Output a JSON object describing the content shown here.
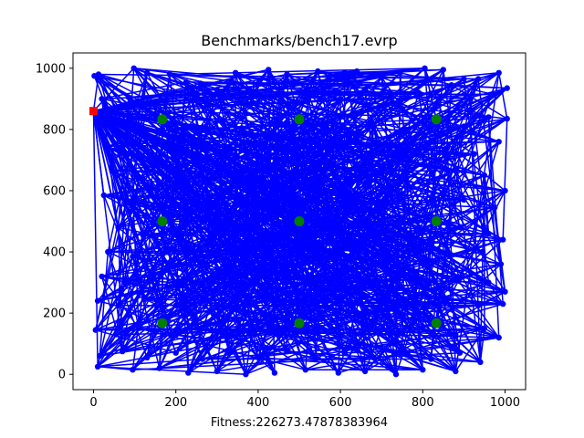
{
  "chart_data": {
    "type": "scatter",
    "title": "Benchmarks/bench17.evrp",
    "xlabel": "Fitness:226273.47878383964",
    "ylabel": "",
    "xlim": [
      -50,
      1050
    ],
    "ylim": [
      -50,
      1050
    ],
    "x_ticks": [
      0,
      200,
      400,
      600,
      800,
      1000
    ],
    "y_ticks": [
      0,
      200,
      400,
      600,
      800,
      1000
    ],
    "x_tick_labels": [
      "0",
      "200",
      "400",
      "600",
      "800",
      "1000"
    ],
    "y_tick_labels": [
      "0",
      "200",
      "400",
      "600",
      "800",
      "1000"
    ],
    "grid": false,
    "legend": "none",
    "colors": {
      "route": "#0000ff",
      "customer": "#0000ff",
      "station": "#008000",
      "depot": "#ff0000"
    },
    "depot": {
      "x": 0,
      "y": 860
    },
    "stations": [
      {
        "x": 167,
        "y": 833
      },
      {
        "x": 500,
        "y": 833
      },
      {
        "x": 833,
        "y": 833
      },
      {
        "x": 167,
        "y": 500
      },
      {
        "x": 500,
        "y": 500
      },
      {
        "x": 833,
        "y": 500
      },
      {
        "x": 167,
        "y": 167
      },
      {
        "x": 500,
        "y": 167
      },
      {
        "x": 833,
        "y": 167
      }
    ],
    "customers": [
      {
        "x": 2,
        "y": 975
      },
      {
        "x": 12,
        "y": 980
      },
      {
        "x": 98,
        "y": 1000
      },
      {
        "x": 130,
        "y": 985
      },
      {
        "x": 185,
        "y": 980
      },
      {
        "x": 225,
        "y": 955
      },
      {
        "x": 260,
        "y": 950
      },
      {
        "x": 335,
        "y": 960
      },
      {
        "x": 345,
        "y": 985
      },
      {
        "x": 425,
        "y": 995
      },
      {
        "x": 470,
        "y": 980
      },
      {
        "x": 545,
        "y": 990
      },
      {
        "x": 575,
        "y": 975
      },
      {
        "x": 610,
        "y": 985
      },
      {
        "x": 640,
        "y": 990
      },
      {
        "x": 700,
        "y": 970
      },
      {
        "x": 745,
        "y": 985
      },
      {
        "x": 805,
        "y": 1000
      },
      {
        "x": 850,
        "y": 995
      },
      {
        "x": 900,
        "y": 965
      },
      {
        "x": 935,
        "y": 965
      },
      {
        "x": 985,
        "y": 985
      },
      {
        "x": 20,
        "y": 900
      },
      {
        "x": 85,
        "y": 905
      },
      {
        "x": 140,
        "y": 890
      },
      {
        "x": 240,
        "y": 915
      },
      {
        "x": 300,
        "y": 930
      },
      {
        "x": 380,
        "y": 920
      },
      {
        "x": 455,
        "y": 910
      },
      {
        "x": 520,
        "y": 925
      },
      {
        "x": 600,
        "y": 900
      },
      {
        "x": 660,
        "y": 930
      },
      {
        "x": 720,
        "y": 905
      },
      {
        "x": 790,
        "y": 920
      },
      {
        "x": 870,
        "y": 945
      },
      {
        "x": 915,
        "y": 900
      },
      {
        "x": 970,
        "y": 915
      },
      {
        "x": 1005,
        "y": 935
      },
      {
        "x": 50,
        "y": 820
      },
      {
        "x": 120,
        "y": 795
      },
      {
        "x": 220,
        "y": 810
      },
      {
        "x": 280,
        "y": 790
      },
      {
        "x": 360,
        "y": 805
      },
      {
        "x": 430,
        "y": 780
      },
      {
        "x": 560,
        "y": 810
      },
      {
        "x": 620,
        "y": 790
      },
      {
        "x": 680,
        "y": 815
      },
      {
        "x": 760,
        "y": 800
      },
      {
        "x": 900,
        "y": 810
      },
      {
        "x": 960,
        "y": 840
      },
      {
        "x": 1005,
        "y": 835
      },
      {
        "x": 30,
        "y": 745
      },
      {
        "x": 95,
        "y": 720
      },
      {
        "x": 180,
        "y": 740
      },
      {
        "x": 250,
        "y": 705
      },
      {
        "x": 320,
        "y": 730
      },
      {
        "x": 395,
        "y": 715
      },
      {
        "x": 470,
        "y": 745
      },
      {
        "x": 540,
        "y": 720
      },
      {
        "x": 600,
        "y": 745
      },
      {
        "x": 690,
        "y": 725
      },
      {
        "x": 770,
        "y": 705
      },
      {
        "x": 860,
        "y": 740
      },
      {
        "x": 925,
        "y": 720
      },
      {
        "x": 985,
        "y": 760
      },
      {
        "x": 45,
        "y": 665
      },
      {
        "x": 110,
        "y": 640
      },
      {
        "x": 205,
        "y": 660
      },
      {
        "x": 270,
        "y": 635
      },
      {
        "x": 350,
        "y": 650
      },
      {
        "x": 420,
        "y": 670
      },
      {
        "x": 480,
        "y": 640
      },
      {
        "x": 560,
        "y": 660
      },
      {
        "x": 640,
        "y": 635
      },
      {
        "x": 700,
        "y": 660
      },
      {
        "x": 760,
        "y": 640
      },
      {
        "x": 880,
        "y": 665
      },
      {
        "x": 950,
        "y": 650
      },
      {
        "x": 1000,
        "y": 600
      },
      {
        "x": 25,
        "y": 585
      },
      {
        "x": 85,
        "y": 560
      },
      {
        "x": 150,
        "y": 580
      },
      {
        "x": 230,
        "y": 565
      },
      {
        "x": 300,
        "y": 590
      },
      {
        "x": 370,
        "y": 560
      },
      {
        "x": 440,
        "y": 585
      },
      {
        "x": 530,
        "y": 565
      },
      {
        "x": 610,
        "y": 580
      },
      {
        "x": 680,
        "y": 560
      },
      {
        "x": 750,
        "y": 590
      },
      {
        "x": 900,
        "y": 570
      },
      {
        "x": 975,
        "y": 545
      },
      {
        "x": 60,
        "y": 480
      },
      {
        "x": 120,
        "y": 455
      },
      {
        "x": 210,
        "y": 470
      },
      {
        "x": 290,
        "y": 450
      },
      {
        "x": 360,
        "y": 480
      },
      {
        "x": 430,
        "y": 460
      },
      {
        "x": 560,
        "y": 475
      },
      {
        "x": 620,
        "y": 450
      },
      {
        "x": 700,
        "y": 470
      },
      {
        "x": 770,
        "y": 455
      },
      {
        "x": 890,
        "y": 480
      },
      {
        "x": 960,
        "y": 460
      },
      {
        "x": 995,
        "y": 440
      },
      {
        "x": 35,
        "y": 400
      },
      {
        "x": 95,
        "y": 385
      },
      {
        "x": 180,
        "y": 405
      },
      {
        "x": 250,
        "y": 380
      },
      {
        "x": 330,
        "y": 400
      },
      {
        "x": 410,
        "y": 385
      },
      {
        "x": 490,
        "y": 405
      },
      {
        "x": 570,
        "y": 380
      },
      {
        "x": 640,
        "y": 400
      },
      {
        "x": 720,
        "y": 385
      },
      {
        "x": 790,
        "y": 405
      },
      {
        "x": 870,
        "y": 390
      },
      {
        "x": 945,
        "y": 400
      },
      {
        "x": 990,
        "y": 360
      },
      {
        "x": 20,
        "y": 320
      },
      {
        "x": 75,
        "y": 300
      },
      {
        "x": 140,
        "y": 315
      },
      {
        "x": 215,
        "y": 295
      },
      {
        "x": 290,
        "y": 320
      },
      {
        "x": 365,
        "y": 300
      },
      {
        "x": 445,
        "y": 320
      },
      {
        "x": 520,
        "y": 295
      },
      {
        "x": 595,
        "y": 315
      },
      {
        "x": 665,
        "y": 300
      },
      {
        "x": 740,
        "y": 320
      },
      {
        "x": 815,
        "y": 295
      },
      {
        "x": 890,
        "y": 315
      },
      {
        "x": 960,
        "y": 300
      },
      {
        "x": 1000,
        "y": 270
      },
      {
        "x": 10,
        "y": 240
      },
      {
        "x": 60,
        "y": 225
      },
      {
        "x": 125,
        "y": 245
      },
      {
        "x": 200,
        "y": 225
      },
      {
        "x": 270,
        "y": 240
      },
      {
        "x": 345,
        "y": 220
      },
      {
        "x": 420,
        "y": 240
      },
      {
        "x": 480,
        "y": 225
      },
      {
        "x": 560,
        "y": 245
      },
      {
        "x": 630,
        "y": 220
      },
      {
        "x": 700,
        "y": 240
      },
      {
        "x": 780,
        "y": 225
      },
      {
        "x": 860,
        "y": 245
      },
      {
        "x": 935,
        "y": 225
      },
      {
        "x": 995,
        "y": 230
      },
      {
        "x": 5,
        "y": 145
      },
      {
        "x": 55,
        "y": 130
      },
      {
        "x": 110,
        "y": 150
      },
      {
        "x": 190,
        "y": 130
      },
      {
        "x": 255,
        "y": 150
      },
      {
        "x": 320,
        "y": 125
      },
      {
        "x": 390,
        "y": 145
      },
      {
        "x": 450,
        "y": 130
      },
      {
        "x": 540,
        "y": 150
      },
      {
        "x": 600,
        "y": 125
      },
      {
        "x": 670,
        "y": 145
      },
      {
        "x": 740,
        "y": 130
      },
      {
        "x": 800,
        "y": 150
      },
      {
        "x": 880,
        "y": 130
      },
      {
        "x": 950,
        "y": 150
      },
      {
        "x": 985,
        "y": 120
      },
      {
        "x": 15,
        "y": 60
      },
      {
        "x": 70,
        "y": 75
      },
      {
        "x": 130,
        "y": 55
      },
      {
        "x": 200,
        "y": 70
      },
      {
        "x": 265,
        "y": 50
      },
      {
        "x": 330,
        "y": 70
      },
      {
        "x": 400,
        "y": 55
      },
      {
        "x": 470,
        "y": 75
      },
      {
        "x": 540,
        "y": 50
      },
      {
        "x": 610,
        "y": 70
      },
      {
        "x": 680,
        "y": 55
      },
      {
        "x": 750,
        "y": 75
      },
      {
        "x": 820,
        "y": 50
      },
      {
        "x": 890,
        "y": 70
      },
      {
        "x": 940,
        "y": 40
      },
      {
        "x": 10,
        "y": 25
      },
      {
        "x": 95,
        "y": 15
      },
      {
        "x": 160,
        "y": 20
      },
      {
        "x": 230,
        "y": 5
      },
      {
        "x": 300,
        "y": 10
      },
      {
        "x": 370,
        "y": 0
      },
      {
        "x": 440,
        "y": 5
      },
      {
        "x": 515,
        "y": 15
      },
      {
        "x": 595,
        "y": 5
      },
      {
        "x": 660,
        "y": 10
      },
      {
        "x": 735,
        "y": 0
      },
      {
        "x": 800,
        "y": 15
      },
      {
        "x": 880,
        "y": 10
      }
    ]
  }
}
